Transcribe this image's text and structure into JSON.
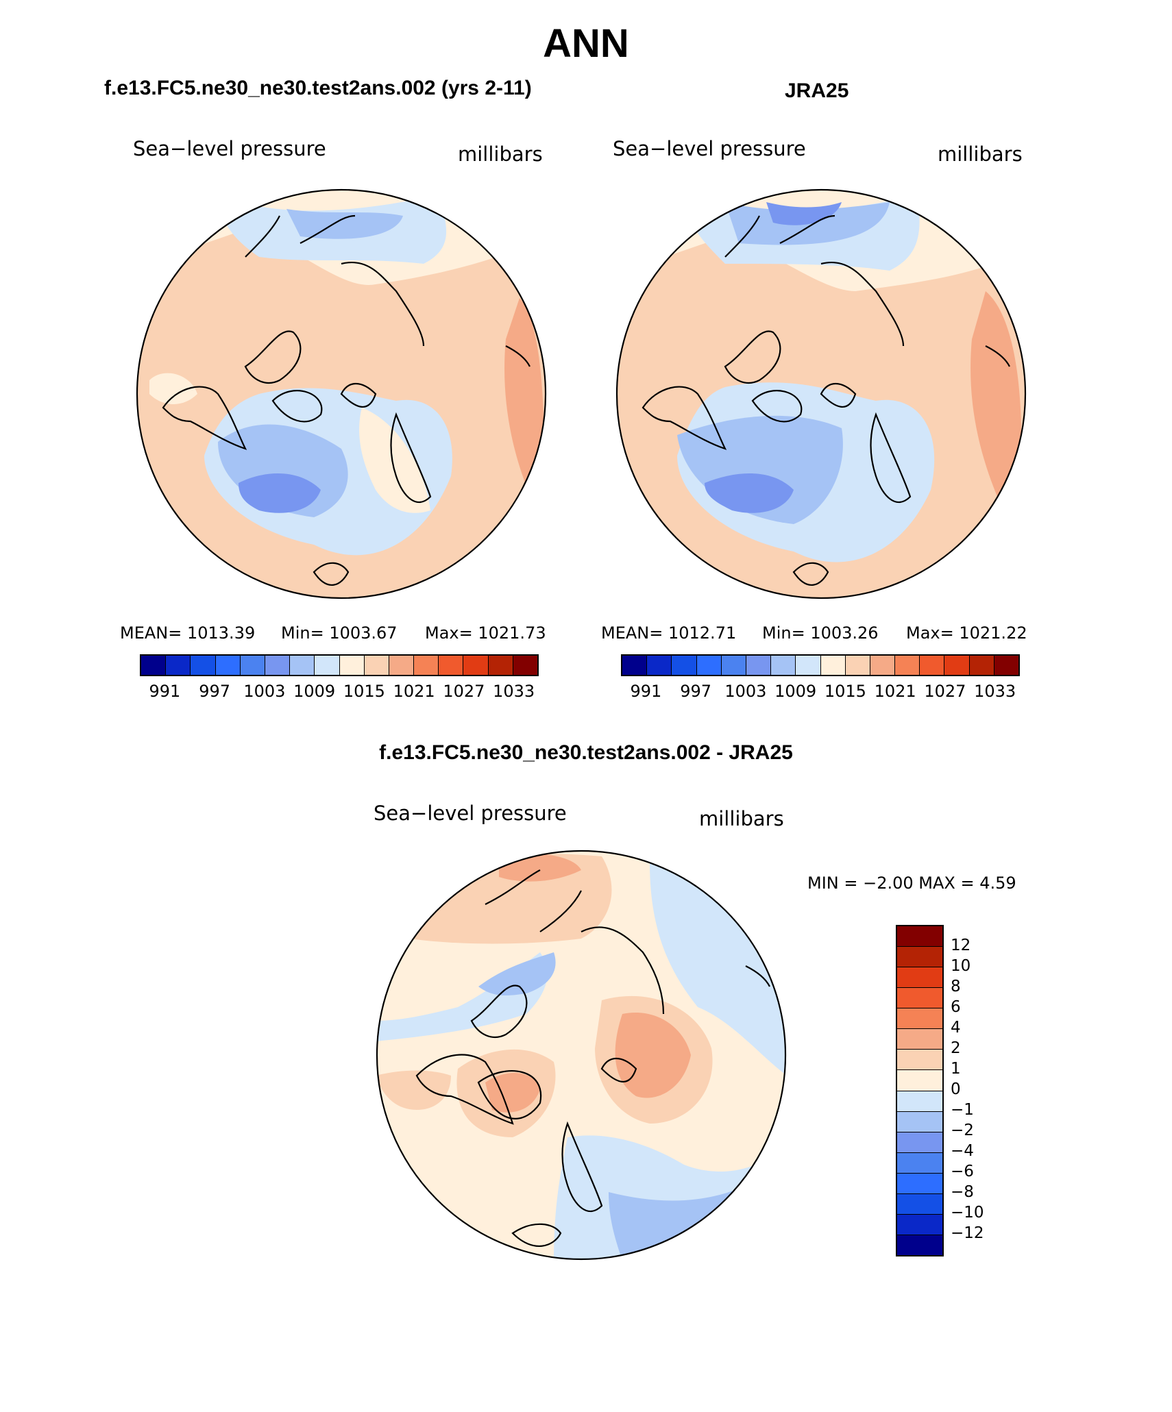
{
  "title": "ANN",
  "panels": [
    {
      "title": "f.e13.FC5.ne30_ne30.test2ans.002 (yrs 2-11)",
      "left_label": "Sea−level pressure",
      "right_label": "millibars",
      "stats": {
        "mean": "MEAN=  1013.39",
        "min": "Min=  1003.67",
        "max": "Max=  1021.73"
      }
    },
    {
      "title": "JRA25",
      "left_label": "Sea−level pressure",
      "right_label": "millibars",
      "stats": {
        "mean": "MEAN=  1012.71",
        "min": "Min=  1003.26",
        "max": "Max=  1021.22"
      }
    },
    {
      "title": "f.e13.FC5.ne30_ne30.test2ans.002 - JRA25",
      "left_label": "Sea−level pressure",
      "right_label": "millibars",
      "stats": {
        "minmax": "MIN =   −2.00  MAX =     4.59"
      }
    }
  ],
  "colorbar_abs": {
    "colors": [
      "#00008c",
      "#0a28c8",
      "#1450e6",
      "#2d6eff",
      "#4b82f0",
      "#7896f0",
      "#a5c3f5",
      "#d2e6fa",
      "#fff0dc",
      "#fad2b4",
      "#f5aa87",
      "#f58255",
      "#f05a2d",
      "#e13c14",
      "#b42305",
      "#820000"
    ],
    "ticks": [
      "991",
      "997",
      "1003",
      "1009",
      "1015",
      "1021",
      "1027",
      "1033"
    ]
  },
  "colorbar_diff": {
    "colors": [
      "#820000",
      "#b42305",
      "#e13c14",
      "#f05a2d",
      "#f58255",
      "#f5aa87",
      "#fad2b4",
      "#fff0dc",
      "#d2e6fa",
      "#a5c3f5",
      "#7896f0",
      "#4b82f0",
      "#2d6eff",
      "#1450e6",
      "#0a28c8",
      "#00008c"
    ],
    "ticks": [
      "12",
      "10",
      "8",
      "6",
      "4",
      "2",
      "1",
      "0",
      "−1",
      "−2",
      "−4",
      "−6",
      "−8",
      "−10",
      "−12"
    ]
  }
}
